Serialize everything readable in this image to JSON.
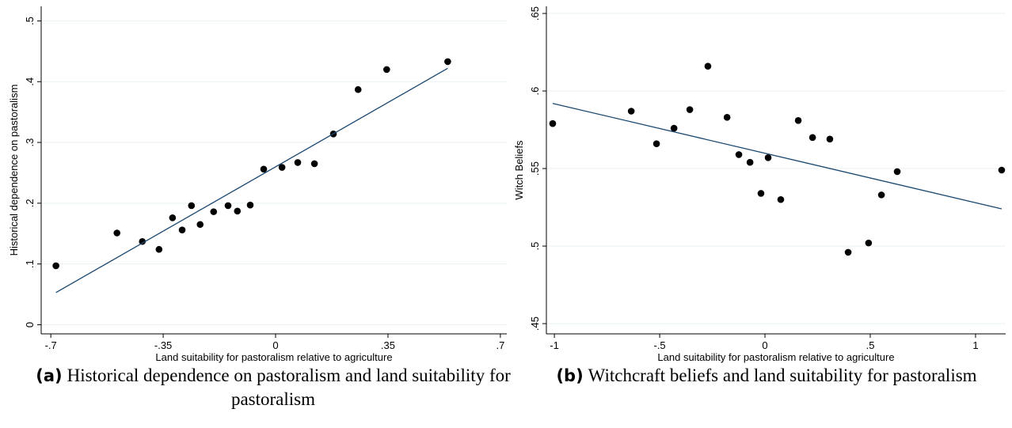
{
  "chart_data": [
    {
      "type": "scatter",
      "x_label": "Land suitability for pastoralism relative to agriculture",
      "y_label": "Historical dependence on pastoralism",
      "caption_label": "(a)",
      "caption": "Historical dependence on pastoralism and land suitability for pastoralism",
      "x": [
        -0.684,
        -0.494,
        -0.415,
        -0.363,
        -0.321,
        -0.291,
        -0.262,
        -0.235,
        -0.193,
        -0.148,
        -0.119,
        -0.079,
        -0.037,
        0.02,
        0.069,
        0.121,
        0.18,
        0.257,
        0.346,
        0.536
      ],
      "values": [
        0.097,
        0.151,
        0.137,
        0.124,
        0.176,
        0.156,
        0.196,
        0.165,
        0.186,
        0.196,
        0.187,
        0.197,
        0.256,
        0.259,
        0.267,
        0.265,
        0.314,
        0.387,
        0.42,
        0.433
      ],
      "color": "#000000",
      "fit_line": {
        "x": [
          -0.684,
          0.536
        ],
        "y": [
          0.053,
          0.422
        ],
        "color": "#1a476f"
      },
      "xlim": [
        -0.73,
        0.72
      ],
      "ylim": [
        -0.015,
        0.524
      ],
      "xticks": [
        {
          "value": -0.7,
          "label": "-.7"
        },
        {
          "value": -0.35,
          "label": "-.35"
        },
        0,
        {
          "value": 0.35,
          "label": ".35"
        },
        {
          "value": 0.7,
          "label": ".7"
        }
      ],
      "yticks": [
        0,
        {
          "value": 0.1,
          "label": ".1"
        },
        {
          "value": 0.2,
          "label": ".2"
        },
        {
          "value": 0.3,
          "label": ".3"
        },
        {
          "value": 0.4,
          "label": ".4"
        },
        {
          "value": 0.5,
          "label": ".5"
        }
      ],
      "grid": true
    },
    {
      "type": "scatter",
      "x_label": "Land suitability for pastoralism relative to agriculture",
      "y_label": "Witch Beliefs",
      "caption_label": "(b)",
      "caption": "Witchcraft beliefs and land suitability for pastoralism",
      "x": [
        -1.008,
        -0.635,
        -0.515,
        -0.432,
        -0.357,
        -0.271,
        -0.18,
        -0.124,
        -0.071,
        -0.019,
        0.015,
        0.075,
        0.158,
        0.226,
        0.308,
        0.395,
        0.492,
        0.628,
        0.553,
        1.124
      ],
      "values": [
        0.579,
        0.587,
        0.566,
        0.576,
        0.588,
        0.616,
        0.583,
        0.559,
        0.554,
        0.534,
        0.557,
        0.53,
        0.581,
        0.57,
        0.569,
        0.496,
        0.502,
        0.548,
        0.533,
        0.549
      ],
      "color": "#000000",
      "fit_line": {
        "x": [
          -1.008,
          1.124
        ],
        "y": [
          0.592,
          0.524
        ],
        "color": "#1a476f"
      },
      "xlim": [
        -1.038,
        1.143
      ],
      "ylim": [
        0.4434,
        0.6546
      ],
      "xticks": [
        -1,
        {
          "value": -0.5,
          "label": "-.5"
        },
        0,
        {
          "value": 0.5,
          "label": ".5"
        },
        1
      ],
      "yticks": [
        {
          "value": 0.45,
          "label": ".45"
        },
        {
          "value": 0.5,
          "label": ".5"
        },
        {
          "value": 0.55,
          "label": ".55"
        },
        {
          "value": 0.6,
          "label": ".6"
        },
        {
          "value": 0.65,
          "label": ".65"
        }
      ],
      "grid": true
    }
  ]
}
